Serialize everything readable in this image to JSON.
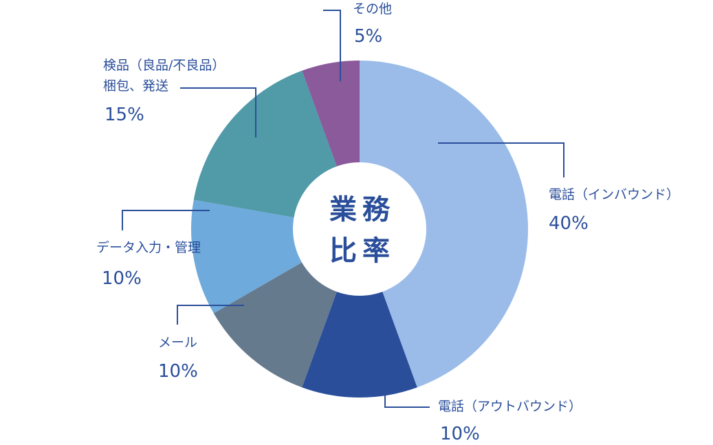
{
  "chart_data": {
    "type": "donut",
    "center_label": [
      "業務",
      "比率"
    ],
    "categories": [
      "電話（インバウンド）",
      "電話（アウトバウンド）",
      "メール",
      "データ入力・管理",
      "検品（良品/不良品）\n梱包、発送",
      "その他"
    ],
    "values": [
      40,
      10,
      10,
      10,
      15,
      5
    ],
    "value_labels": [
      "40%",
      "10%",
      "10%",
      "10%",
      "15%",
      "5%"
    ],
    "colors": [
      "#9bbce9",
      "#2a4e9a",
      "#667a8e",
      "#6eaadb",
      "#519aa8",
      "#8a5a9b"
    ]
  }
}
